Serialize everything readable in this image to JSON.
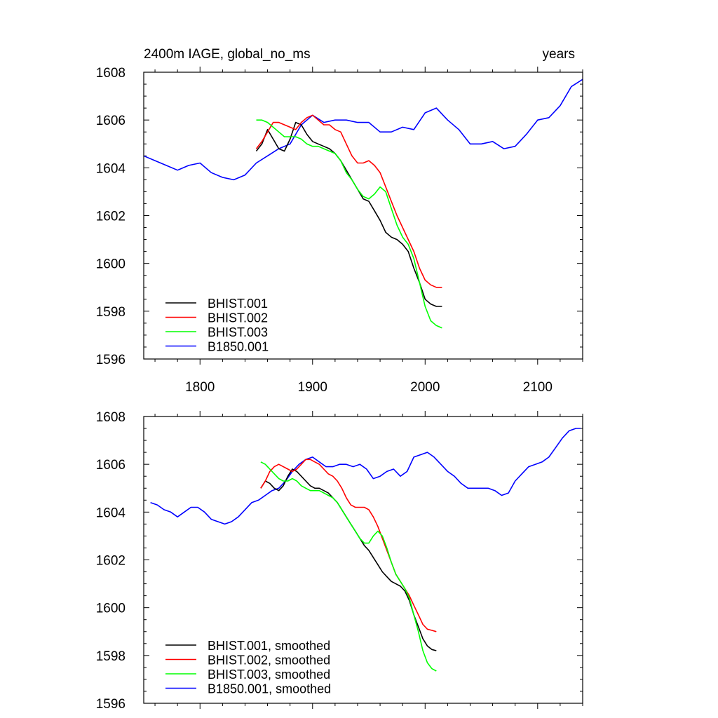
{
  "chart_data": [
    {
      "type": "line",
      "title_left": "2400m IAGE, global_no_ms",
      "title_right": "years",
      "xlim": [
        1750,
        2140
      ],
      "ylim": [
        1596,
        1608
      ],
      "x_ticks": [
        1800,
        1900,
        2000,
        2100
      ],
      "y_ticks": [
        1596,
        1598,
        1600,
        1602,
        1604,
        1606,
        1608
      ],
      "x_tick_labels_shown": true,
      "legend_position": "bottom-left",
      "series": [
        {
          "name": "BHIST.001",
          "color": "#000000",
          "x": [
            1850,
            1855,
            1860,
            1865,
            1870,
            1875,
            1880,
            1885,
            1890,
            1895,
            1900,
            1905,
            1910,
            1915,
            1920,
            1925,
            1930,
            1935,
            1940,
            1945,
            1950,
            1955,
            1960,
            1965,
            1970,
            1975,
            1980,
            1985,
            1990,
            1995,
            2000,
            2005,
            2010,
            2015
          ],
          "y": [
            1604.7,
            1605.0,
            1605.6,
            1605.2,
            1604.8,
            1604.7,
            1605.2,
            1605.9,
            1605.8,
            1605.4,
            1605.1,
            1605.0,
            1604.9,
            1604.8,
            1604.6,
            1604.3,
            1603.9,
            1603.5,
            1603.1,
            1602.7,
            1602.6,
            1602.2,
            1601.8,
            1601.3,
            1601.1,
            1601.0,
            1600.8,
            1600.5,
            1599.8,
            1599.2,
            1598.5,
            1598.3,
            1598.2,
            1598.2
          ]
        },
        {
          "name": "BHIST.002",
          "color": "#ff0000",
          "x": [
            1850,
            1855,
            1860,
            1865,
            1870,
            1875,
            1880,
            1885,
            1890,
            1895,
            1900,
            1905,
            1910,
            1915,
            1920,
            1925,
            1930,
            1935,
            1940,
            1945,
            1950,
            1955,
            1960,
            1965,
            1970,
            1975,
            1980,
            1985,
            1990,
            1995,
            2000,
            2005,
            2010,
            2015
          ],
          "y": [
            1604.8,
            1605.1,
            1605.5,
            1605.9,
            1605.9,
            1605.8,
            1605.7,
            1605.6,
            1605.9,
            1606.1,
            1606.2,
            1606.0,
            1605.8,
            1605.8,
            1605.6,
            1605.5,
            1605.0,
            1604.5,
            1604.2,
            1604.2,
            1604.3,
            1604.1,
            1603.8,
            1603.2,
            1602.6,
            1602.0,
            1601.5,
            1601.0,
            1600.5,
            1599.8,
            1599.3,
            1599.1,
            1599.0,
            1599.0
          ]
        },
        {
          "name": "BHIST.003",
          "color": "#00ff00",
          "x": [
            1850,
            1855,
            1860,
            1865,
            1870,
            1875,
            1880,
            1885,
            1890,
            1895,
            1900,
            1905,
            1910,
            1915,
            1920,
            1925,
            1930,
            1935,
            1940,
            1945,
            1950,
            1955,
            1960,
            1965,
            1970,
            1975,
            1980,
            1985,
            1990,
            1995,
            2000,
            2005,
            2010,
            2015
          ],
          "y": [
            1606.0,
            1606.0,
            1605.9,
            1605.7,
            1605.5,
            1605.3,
            1605.3,
            1605.3,
            1605.2,
            1605.0,
            1604.9,
            1604.9,
            1604.8,
            1604.7,
            1604.6,
            1604.3,
            1603.8,
            1603.5,
            1603.1,
            1602.8,
            1602.7,
            1602.9,
            1603.2,
            1603.0,
            1602.3,
            1601.6,
            1601.1,
            1600.8,
            1600.2,
            1599.2,
            1598.2,
            1597.6,
            1597.4,
            1597.3
          ]
        },
        {
          "name": "B1850.001",
          "color": "#0000ff",
          "x": [
            1750,
            1760,
            1770,
            1780,
            1790,
            1800,
            1810,
            1820,
            1830,
            1840,
            1850,
            1860,
            1870,
            1880,
            1890,
            1900,
            1910,
            1920,
            1930,
            1940,
            1950,
            1960,
            1970,
            1980,
            1990,
            2000,
            2010,
            2020,
            2030,
            2040,
            2050,
            2060,
            2070,
            2080,
            2090,
            2100,
            2110,
            2120,
            2130,
            2140
          ],
          "y": [
            1604.5,
            1604.3,
            1604.1,
            1603.9,
            1604.1,
            1604.2,
            1603.8,
            1603.6,
            1603.5,
            1603.7,
            1604.2,
            1604.5,
            1604.8,
            1605.0,
            1605.8,
            1606.2,
            1605.9,
            1606.0,
            1606.0,
            1605.9,
            1605.9,
            1605.5,
            1605.5,
            1605.7,
            1605.6,
            1606.3,
            1606.5,
            1606.0,
            1605.6,
            1605.0,
            1605.0,
            1605.1,
            1604.8,
            1604.9,
            1605.4,
            1606.0,
            1606.1,
            1606.6,
            1607.4,
            1607.7
          ]
        }
      ]
    },
    {
      "type": "line",
      "xlim": [
        1750,
        2140
      ],
      "ylim": [
        1596,
        1608
      ],
      "x_ticks": [
        1800,
        1900,
        2000,
        2100
      ],
      "y_ticks": [
        1596,
        1598,
        1600,
        1602,
        1604,
        1606,
        1608
      ],
      "x_tick_labels_shown": false,
      "legend_position": "bottom-left",
      "series": [
        {
          "name": "BHIST.001, smoothed",
          "color": "#000000",
          "x": [
            1854,
            1858,
            1862,
            1866,
            1870,
            1874,
            1878,
            1882,
            1886,
            1890,
            1894,
            1898,
            1902,
            1906,
            1910,
            1914,
            1918,
            1922,
            1926,
            1930,
            1934,
            1938,
            1942,
            1946,
            1950,
            1954,
            1958,
            1962,
            1966,
            1970,
            1974,
            1978,
            1982,
            1986,
            1990,
            1994,
            1998,
            2002,
            2006,
            2010
          ],
          "y": [
            1605.0,
            1605.3,
            1605.2,
            1605.0,
            1604.9,
            1605.1,
            1605.5,
            1605.8,
            1605.7,
            1605.5,
            1605.3,
            1605.1,
            1605.0,
            1605.0,
            1604.9,
            1604.8,
            1604.6,
            1604.4,
            1604.1,
            1603.8,
            1603.5,
            1603.2,
            1602.9,
            1602.6,
            1602.4,
            1602.1,
            1601.8,
            1601.5,
            1601.3,
            1601.1,
            1601.0,
            1600.9,
            1600.7,
            1600.3,
            1599.7,
            1599.2,
            1598.7,
            1598.4,
            1598.25,
            1598.2
          ]
        },
        {
          "name": "BHIST.002, smoothed",
          "color": "#ff0000",
          "x": [
            1854,
            1858,
            1862,
            1866,
            1870,
            1874,
            1878,
            1882,
            1886,
            1890,
            1894,
            1898,
            1902,
            1906,
            1910,
            1914,
            1918,
            1922,
            1926,
            1930,
            1934,
            1938,
            1942,
            1946,
            1950,
            1954,
            1958,
            1962,
            1966,
            1970,
            1974,
            1978,
            1982,
            1986,
            1990,
            1994,
            1998,
            2002,
            2006,
            2010
          ],
          "y": [
            1605.0,
            1605.3,
            1605.7,
            1605.9,
            1606.0,
            1605.9,
            1605.8,
            1605.7,
            1605.8,
            1606.0,
            1606.2,
            1606.2,
            1606.1,
            1606.0,
            1605.8,
            1605.6,
            1605.5,
            1605.3,
            1605.0,
            1604.6,
            1604.3,
            1604.2,
            1604.2,
            1604.2,
            1604.1,
            1603.8,
            1603.4,
            1602.9,
            1602.4,
            1601.9,
            1601.4,
            1601.1,
            1600.8,
            1600.5,
            1600.1,
            1599.7,
            1599.3,
            1599.1,
            1599.05,
            1599.0
          ]
        },
        {
          "name": "BHIST.003, smoothed",
          "color": "#00ff00",
          "x": [
            1854,
            1858,
            1862,
            1866,
            1870,
            1874,
            1878,
            1882,
            1886,
            1890,
            1894,
            1898,
            1902,
            1906,
            1910,
            1914,
            1918,
            1922,
            1926,
            1930,
            1934,
            1938,
            1942,
            1946,
            1950,
            1954,
            1958,
            1962,
            1966,
            1970,
            1974,
            1978,
            1982,
            1986,
            1990,
            1994,
            1998,
            2002,
            2006,
            2010
          ],
          "y": [
            1606.1,
            1606.0,
            1605.8,
            1605.6,
            1605.4,
            1605.3,
            1605.3,
            1605.4,
            1605.3,
            1605.1,
            1605.0,
            1604.9,
            1604.9,
            1604.9,
            1604.8,
            1604.7,
            1604.6,
            1604.4,
            1604.1,
            1603.8,
            1603.5,
            1603.2,
            1602.9,
            1602.7,
            1602.7,
            1603.0,
            1603.2,
            1603.0,
            1602.5,
            1601.9,
            1601.4,
            1601.1,
            1600.8,
            1600.4,
            1599.7,
            1599.0,
            1598.2,
            1597.7,
            1597.45,
            1597.35
          ]
        },
        {
          "name": "B1850.001, smoothed",
          "color": "#0000ff",
          "x": [
            1756,
            1762,
            1768,
            1774,
            1780,
            1786,
            1792,
            1798,
            1804,
            1810,
            1816,
            1822,
            1828,
            1834,
            1840,
            1846,
            1852,
            1858,
            1864,
            1870,
            1876,
            1882,
            1888,
            1894,
            1900,
            1906,
            1912,
            1918,
            1924,
            1930,
            1936,
            1942,
            1948,
            1954,
            1960,
            1966,
            1972,
            1978,
            1984,
            1990,
            1996,
            2002,
            2008,
            2014,
            2020,
            2026,
            2032,
            2038,
            2044,
            2050,
            2056,
            2062,
            2068,
            2074,
            2080,
            2086,
            2092,
            2098,
            2104,
            2110,
            2116,
            2122,
            2128,
            2134,
            2138
          ],
          "y": [
            1604.4,
            1604.3,
            1604.1,
            1604.0,
            1603.8,
            1604.0,
            1604.2,
            1604.2,
            1604.0,
            1603.7,
            1603.6,
            1603.5,
            1603.6,
            1603.8,
            1604.1,
            1604.4,
            1604.5,
            1604.7,
            1604.9,
            1605.0,
            1605.3,
            1605.7,
            1606.0,
            1606.2,
            1606.3,
            1606.1,
            1605.9,
            1605.9,
            1606.0,
            1606.0,
            1605.9,
            1606.0,
            1605.8,
            1605.4,
            1605.5,
            1605.7,
            1605.8,
            1605.5,
            1605.7,
            1606.3,
            1606.4,
            1606.5,
            1606.3,
            1606.0,
            1605.7,
            1605.5,
            1605.2,
            1605.0,
            1605.0,
            1605.0,
            1605.0,
            1604.9,
            1604.7,
            1604.8,
            1605.3,
            1605.6,
            1605.9,
            1606.0,
            1606.1,
            1606.3,
            1606.7,
            1607.1,
            1607.4,
            1607.5,
            1607.5
          ]
        }
      ]
    }
  ]
}
